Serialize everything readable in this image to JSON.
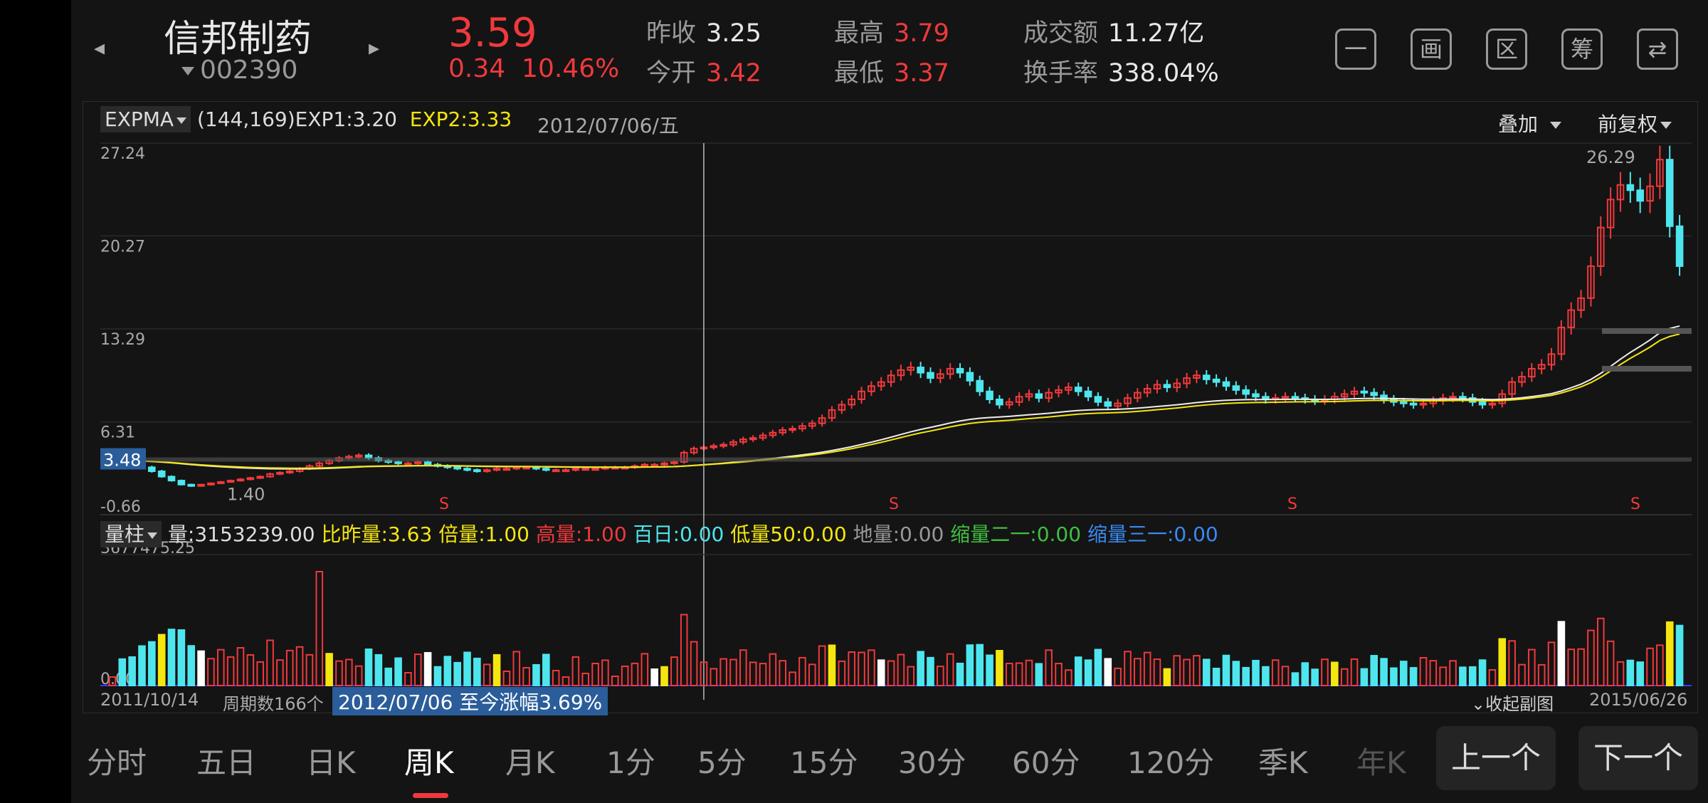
{
  "header": {
    "stock_name": "信邦制药",
    "stock_code": "002390",
    "price": "3.59",
    "change": "0.34",
    "change_pct": "10.46%",
    "quotes": [
      {
        "label": "昨收",
        "value": "3.25",
        "color": "white"
      },
      {
        "label": "今开",
        "value": "3.42",
        "color": "red"
      },
      {
        "label": "最高",
        "value": "3.79",
        "color": "red"
      },
      {
        "label": "最低",
        "value": "3.37",
        "color": "red"
      },
      {
        "label": "成交额",
        "value": "11.27亿",
        "color": "white"
      },
      {
        "label": "换手率",
        "value": "338.04%",
        "color": "white"
      }
    ],
    "icons": [
      {
        "name": "minus-icon",
        "glyph": "一"
      },
      {
        "name": "draw-icon",
        "glyph": "画"
      },
      {
        "name": "range-icon",
        "glyph": "区"
      },
      {
        "name": "chip-icon",
        "glyph": "筹"
      },
      {
        "name": "switch-device-icon",
        "glyph": "⇄"
      }
    ]
  },
  "main_chart": {
    "indicator": "EXPMA",
    "params": "(144,169)",
    "exp1": "EXP1:3.20",
    "exp2": "EXP2:3.33",
    "date": "2012/07/06/五",
    "overlay": "叠加",
    "adjust": "前复权",
    "y_ticks": [
      "27.24",
      "20.27",
      "13.29",
      "6.31",
      "-0.66"
    ],
    "cursor_value": "3.48",
    "low_label": "1.40",
    "high_label": "26.29",
    "s_marks": [
      "S",
      "S",
      "S",
      "S"
    ]
  },
  "volume": {
    "selector": "量柱",
    "volume": "量:3153239.00",
    "vs_prev": "比昨量:3.63",
    "ratio": "倍量:1.00",
    "high": "高量:1.00",
    "hundred": "百日:0.00",
    "low50": "低量50:0.00",
    "ground": "地量:0.00",
    "shrink21": "缩量二一:0.00",
    "shrink31": "缩量三一:0.00",
    "max": "3677475.25",
    "zero": "0.00"
  },
  "footer": {
    "start": "2011/10/14",
    "periods": "周期数166个",
    "range_text": "2012/07/06 至今涨幅3.69%",
    "collapse": "收起副图",
    "end": "2015/06/26"
  },
  "tabs": [
    "分时",
    "五日",
    "日K",
    "周K",
    "月K",
    "1分",
    "5分",
    "15分",
    "30分",
    "60分",
    "120分",
    "季K",
    "年K"
  ],
  "active_tab": "周K",
  "prev": "上一个",
  "next": "下一个",
  "colors": {
    "up": "#f0393c",
    "down": "#4ee6ee",
    "yellow": "#f5e60f",
    "white": "#ffffff"
  },
  "chart_data": {
    "type": "candlestick",
    "x_range": [
      "2011/10/14",
      "2015/06/26"
    ],
    "y_range": [
      -0.66,
      27.24
    ],
    "points_close": [
      3.4,
      3.3,
      3.1,
      2.9,
      2.6,
      2.2,
      1.9,
      1.6,
      1.5,
      1.6,
      1.7,
      1.8,
      1.9,
      2.0,
      2.1,
      2.2,
      2.4,
      2.5,
      2.6,
      2.8,
      3.0,
      3.2,
      3.4,
      3.6,
      3.7,
      3.8,
      3.6,
      3.4,
      3.3,
      3.2,
      3.2,
      3.3,
      3.1,
      3.0,
      2.9,
      2.8,
      2.7,
      2.6,
      2.7,
      2.8,
      2.8,
      2.9,
      2.9,
      2.8,
      2.7,
      2.7,
      2.7,
      2.8,
      2.8,
      2.8,
      2.9,
      2.9,
      2.9,
      3.0,
      3.1,
      3.1,
      3.2,
      3.3,
      4.0,
      4.3,
      4.4,
      4.5,
      4.6,
      4.8,
      5.0,
      5.1,
      5.3,
      5.5,
      5.7,
      5.8,
      6.0,
      6.2,
      6.6,
      7.2,
      7.6,
      8.0,
      8.6,
      9.0,
      9.3,
      9.8,
      10.2,
      10.4,
      10.0,
      9.6,
      9.9,
      10.3,
      10.0,
      9.4,
      8.6,
      8.0,
      7.6,
      7.8,
      8.2,
      8.4,
      8.1,
      8.5,
      8.7,
      8.9,
      8.6,
      8.2,
      7.8,
      7.5,
      7.7,
      8.1,
      8.5,
      8.8,
      9.1,
      8.9,
      9.2,
      9.6,
      9.8,
      9.5,
      9.3,
      9.0,
      8.7,
      8.4,
      8.2,
      8.0,
      8.1,
      8.2,
      8.1,
      8.0,
      7.9,
      8.0,
      8.2,
      8.4,
      8.6,
      8.5,
      8.3,
      8.0,
      7.8,
      7.7,
      7.6,
      7.7,
      7.9,
      8.1,
      8.2,
      8.1,
      7.8,
      7.6,
      7.7,
      8.4,
      9.3,
      9.7,
      10.3,
      10.6,
      11.4,
      13.4,
      14.7,
      15.6,
      18.0,
      20.9,
      23.0,
      24.1,
      23.7,
      22.9,
      24.0,
      26.0,
      21.0,
      18.0
    ]
  }
}
